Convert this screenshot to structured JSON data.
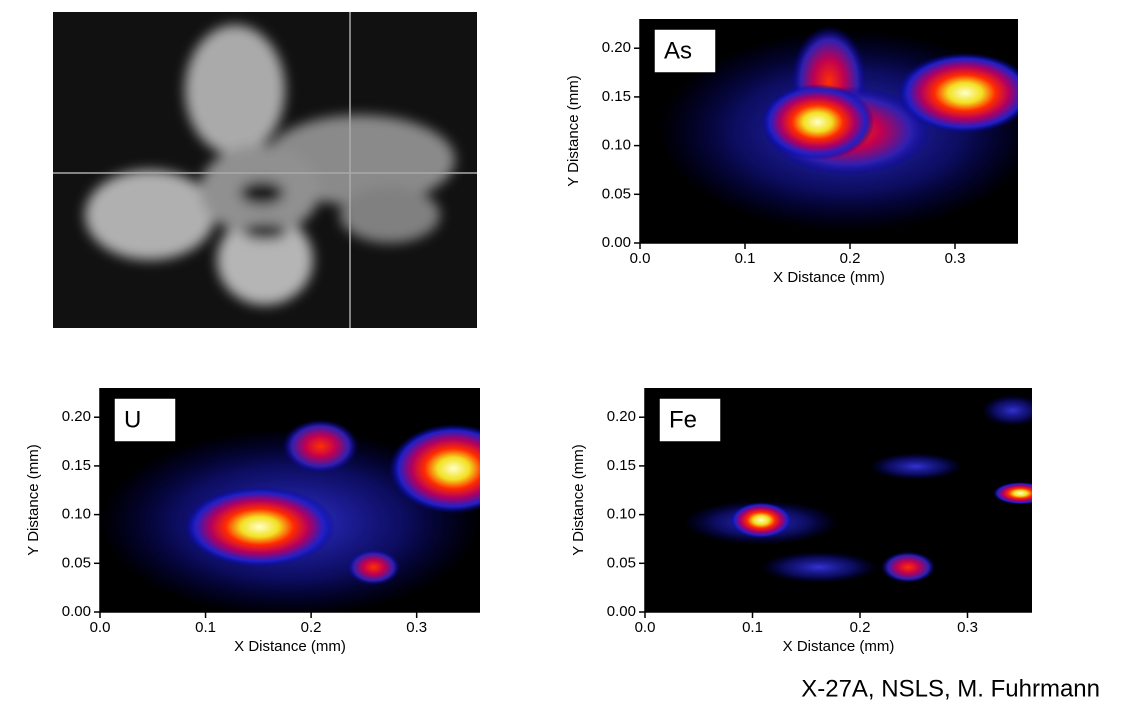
{
  "chart_data": [
    {
      "type": "heatmap",
      "title": "As",
      "x_label": "X Distance (mm)",
      "y_label": "Y Distance (mm)",
      "xlim": [
        0,
        0.36
      ],
      "ylim": [
        0,
        0.23
      ],
      "xticks": [
        {
          "value": 0,
          "label": "0.0"
        },
        0.1,
        0.2,
        0.3
      ],
      "yticks": [
        {
          "value": 0,
          "label": "0.00"
        },
        0.05,
        {
          "value": 0.1,
          "label": "0.10"
        },
        0.15,
        {
          "value": 0.2,
          "label": "0.20"
        }
      ]
    },
    {
      "type": "heatmap",
      "title": "U",
      "x_label": "X Distance (mm)",
      "y_label": "Y Distance (mm)",
      "xlim": [
        0,
        0.36
      ],
      "ylim": [
        0,
        0.23
      ],
      "xticks": [
        {
          "value": 0,
          "label": "0.0"
        },
        0.1,
        0.2,
        0.3
      ],
      "yticks": [
        {
          "value": 0,
          "label": "0.00"
        },
        0.05,
        {
          "value": 0.1,
          "label": "0.10"
        },
        0.15,
        {
          "value": 0.2,
          "label": "0.20"
        }
      ]
    },
    {
      "type": "heatmap",
      "title": "Fe",
      "x_label": "X Distance (mm)",
      "y_label": "Y Distance (mm)",
      "xlim": [
        0,
        0.36
      ],
      "ylim": [
        0,
        0.23
      ],
      "xticks": [
        {
          "value": 0,
          "label": "0.0"
        },
        0.1,
        0.2,
        0.3
      ],
      "yticks": [
        {
          "value": 0,
          "label": "0.00"
        },
        0.05,
        {
          "value": 0.1,
          "label": "0.10"
        },
        0.15,
        {
          "value": 0.2,
          "label": "0.20"
        }
      ]
    }
  ],
  "caption": "X-27A, NSLS, M. Fuhrmann"
}
